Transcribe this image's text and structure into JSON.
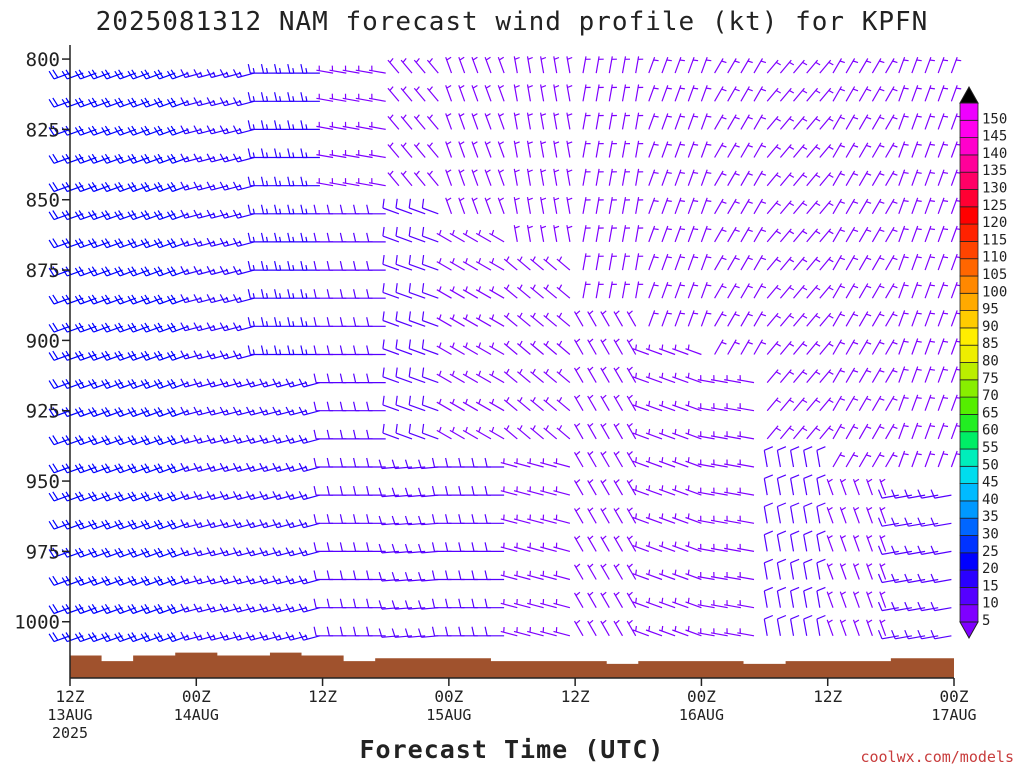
{
  "chart_data": {
    "type": "wind-barb",
    "title": "2025081312 NAM forecast wind profile (kt) for KPFN",
    "xlabel": "Forecast Time (UTC)",
    "ylabel": "",
    "credit": "coolwx.com/models",
    "ylim": [
      1020,
      795
    ],
    "yticks": [
      800,
      825,
      850,
      875,
      900,
      925,
      950,
      975,
      1000
    ],
    "xticks": [
      {
        "hour": 0,
        "label1": "12Z",
        "label2": "13AUG",
        "label3": "2025"
      },
      {
        "hour": 12,
        "label1": "00Z",
        "label2": "14AUG",
        "label3": ""
      },
      {
        "hour": 24,
        "label1": "12Z",
        "label2": "",
        "label3": ""
      },
      {
        "hour": 36,
        "label1": "00Z",
        "label2": "15AUG",
        "label3": ""
      },
      {
        "hour": 48,
        "label1": "12Z",
        "label2": "",
        "label3": ""
      },
      {
        "hour": 60,
        "label1": "00Z",
        "label2": "16AUG",
        "label3": ""
      },
      {
        "hour": 72,
        "label1": "12Z",
        "label2": "",
        "label3": ""
      },
      {
        "hour": 84,
        "label1": "00Z",
        "label2": "17AUG",
        "label3": ""
      }
    ],
    "pressure_levels": [
      805,
      815,
      825,
      835,
      845,
      855,
      865,
      875,
      885,
      895,
      905,
      915,
      925,
      935,
      945,
      955,
      965,
      975,
      985,
      995,
      1005
    ],
    "colorbar": {
      "levels": [
        5,
        10,
        15,
        20,
        25,
        30,
        35,
        40,
        45,
        50,
        55,
        60,
        65,
        70,
        75,
        80,
        85,
        90,
        95,
        100,
        105,
        110,
        115,
        120,
        125,
        130,
        135,
        140,
        145,
        150
      ],
      "colors": [
        "#7f00ff",
        "#5500ff",
        "#2a00ff",
        "#0000ff",
        "#0033ff",
        "#0066ff",
        "#0099ff",
        "#00bbff",
        "#00ddee",
        "#00eebb",
        "#00ee66",
        "#22ee22",
        "#55ee00",
        "#88ee00",
        "#bbee00",
        "#eeee00",
        "#ffee00",
        "#ffcc00",
        "#ffaa00",
        "#ff8800",
        "#ff6600",
        "#ff4400",
        "#ff2200",
        "#ff0000",
        "#ff0033",
        "#ff0066",
        "#ff0099",
        "#ff00cc",
        "#ff00ee",
        "#ee00ff"
      ]
    },
    "terrain_color": "#a0522d",
    "wind_profile": [
      {
        "start_hour": 0,
        "end_hour": 6,
        "segments": [
          {
            "from": 805,
            "to": 1005,
            "direction": 250,
            "speed_kt": 20
          }
        ]
      },
      {
        "start_hour": 6,
        "end_hour": 12,
        "segments": [
          {
            "from": 805,
            "to": 1005,
            "direction": 250,
            "speed_kt": 20
          }
        ]
      },
      {
        "start_hour": 12,
        "end_hour": 18,
        "segments": [
          {
            "from": 805,
            "to": 1005,
            "direction": 255,
            "speed_kt": 17
          }
        ]
      },
      {
        "start_hour": 18,
        "end_hour": 24,
        "segments": [
          {
            "from": 805,
            "to": 905,
            "direction": 270,
            "speed_kt": 15
          },
          {
            "from": 915,
            "to": 1005,
            "direction": 255,
            "speed_kt": 16
          }
        ]
      },
      {
        "start_hour": 24,
        "end_hour": 30,
        "segments": [
          {
            "from": 805,
            "to": 845,
            "direction": 280,
            "speed_kt": 8
          },
          {
            "from": 855,
            "to": 1005,
            "direction": 270,
            "speed_kt": 12
          }
        ]
      },
      {
        "start_hour": 30,
        "end_hour": 36,
        "segments": [
          {
            "from": 805,
            "to": 845,
            "direction": 320,
            "speed_kt": 5
          },
          {
            "from": 855,
            "to": 935,
            "direction": 290,
            "speed_kt": 10
          },
          {
            "from": 945,
            "to": 1005,
            "direction": 265,
            "speed_kt": 12
          }
        ]
      },
      {
        "start_hour": 36,
        "end_hour": 42,
        "segments": [
          {
            "from": 805,
            "to": 855,
            "direction": 340,
            "speed_kt": 5
          },
          {
            "from": 865,
            "to": 935,
            "direction": 300,
            "speed_kt": 8
          },
          {
            "from": 945,
            "to": 1005,
            "direction": 270,
            "speed_kt": 10
          }
        ]
      },
      {
        "start_hour": 42,
        "end_hour": 48,
        "segments": [
          {
            "from": 805,
            "to": 865,
            "direction": 350,
            "speed_kt": 5
          },
          {
            "from": 875,
            "to": 935,
            "direction": 310,
            "speed_kt": 7
          },
          {
            "from": 945,
            "to": 1005,
            "direction": 285,
            "speed_kt": 8
          }
        ]
      },
      {
        "start_hour": 48,
        "end_hour": 54,
        "segments": [
          {
            "from": 805,
            "to": 885,
            "direction": 10,
            "speed_kt": 5
          },
          {
            "from": 895,
            "to": 1005,
            "direction": 330,
            "speed_kt": 5
          }
        ]
      },
      {
        "start_hour": 54,
        "end_hour": 60,
        "segments": [
          {
            "from": 805,
            "to": 895,
            "direction": 20,
            "speed_kt": 5
          },
          {
            "from": 905,
            "to": 1005,
            "direction": 290,
            "speed_kt": 7
          }
        ]
      },
      {
        "start_hour": 60,
        "end_hour": 66,
        "segments": [
          {
            "from": 805,
            "to": 905,
            "direction": 30,
            "speed_kt": 5
          },
          {
            "from": 915,
            "to": 1005,
            "direction": 280,
            "speed_kt": 8
          }
        ]
      },
      {
        "start_hour": 66,
        "end_hour": 72,
        "segments": [
          {
            "from": 805,
            "to": 935,
            "direction": 40,
            "speed_kt": 5
          },
          {
            "from": 945,
            "to": 1005,
            "direction": 350,
            "speed_kt": 10
          }
        ]
      },
      {
        "start_hour": 72,
        "end_hour": 78,
        "segments": [
          {
            "from": 805,
            "to": 945,
            "direction": 30,
            "speed_kt": 5
          },
          {
            "from": 955,
            "to": 1005,
            "direction": 340,
            "speed_kt": 8
          }
        ]
      },
      {
        "start_hour": 78,
        "end_hour": 84,
        "segments": [
          {
            "from": 805,
            "to": 945,
            "direction": 20,
            "speed_kt": 5
          },
          {
            "from": 955,
            "to": 1005,
            "direction": 260,
            "speed_kt": 10
          }
        ]
      }
    ],
    "terrain_top": [
      {
        "hour": 0,
        "p": 1012
      },
      {
        "hour": 3,
        "p": 1014
      },
      {
        "hour": 6,
        "p": 1012
      },
      {
        "hour": 10,
        "p": 1011
      },
      {
        "hour": 14,
        "p": 1012
      },
      {
        "hour": 19,
        "p": 1011
      },
      {
        "hour": 22,
        "p": 1012
      },
      {
        "hour": 26,
        "p": 1014
      },
      {
        "hour": 29,
        "p": 1013
      },
      {
        "hour": 40,
        "p": 1014
      },
      {
        "hour": 48,
        "p": 1014
      },
      {
        "hour": 51,
        "p": 1015
      },
      {
        "hour": 54,
        "p": 1014
      },
      {
        "hour": 60,
        "p": 1014
      },
      {
        "hour": 64,
        "p": 1015
      },
      {
        "hour": 68,
        "p": 1014
      },
      {
        "hour": 72,
        "p": 1014
      },
      {
        "hour": 78,
        "p": 1013
      },
      {
        "hour": 84,
        "p": 1012
      }
    ]
  }
}
